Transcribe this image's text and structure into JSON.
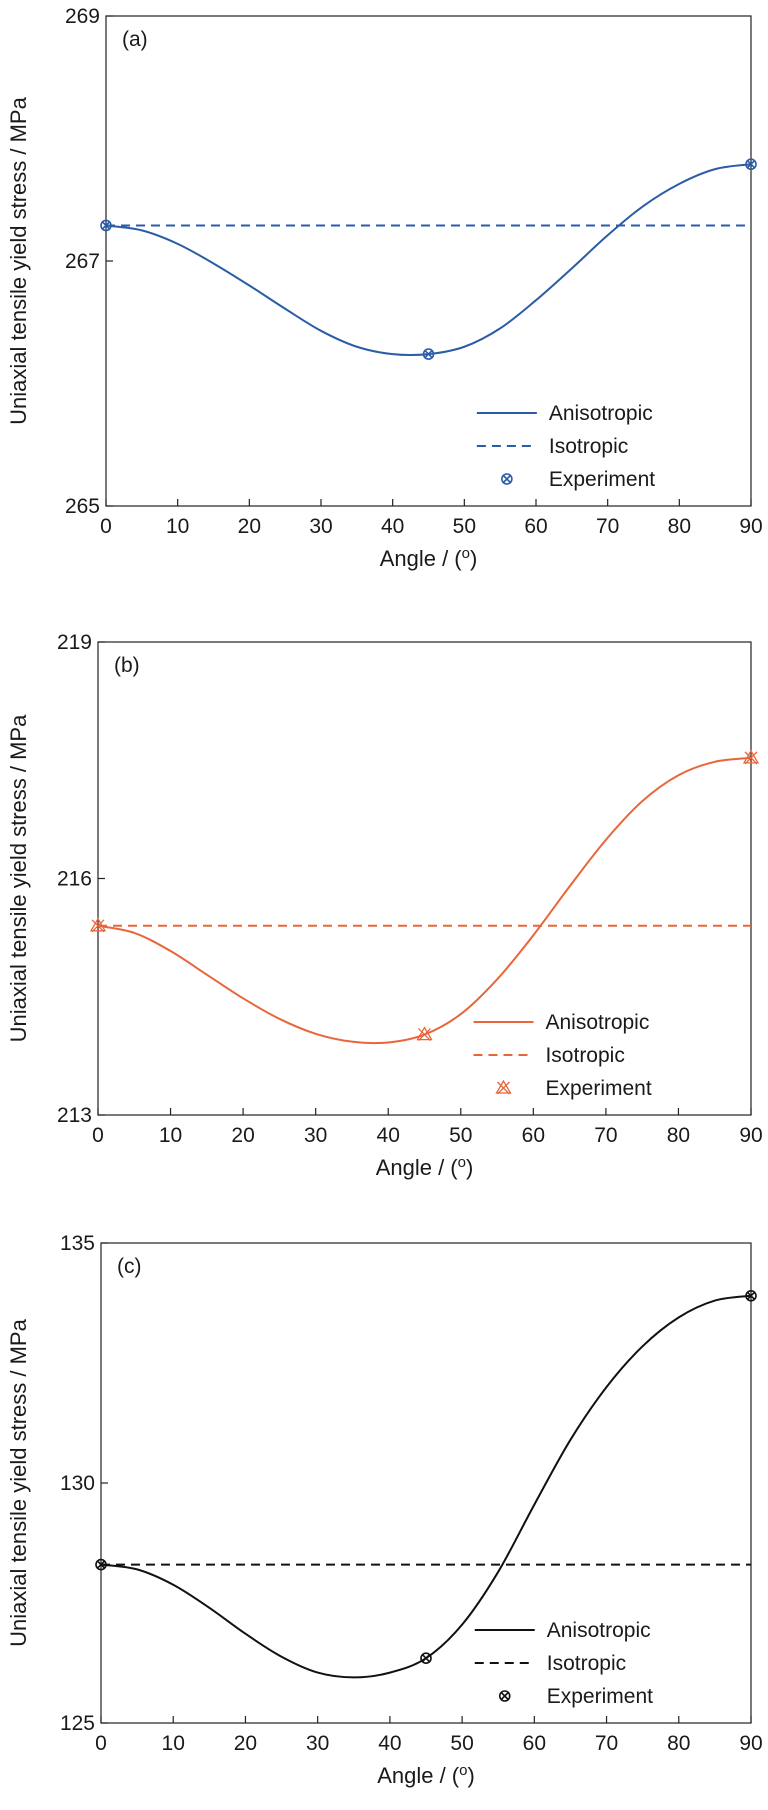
{
  "chart_data": [
    {
      "type": "line",
      "panel_label": "(a)",
      "xlabel": "Angle / (o)",
      "ylabel": "Uniaxial tensile yield stress / MPa",
      "xlim": [
        0,
        90
      ],
      "ylim": [
        265,
        269
      ],
      "xticks": [
        "0",
        "10",
        "20",
        "30",
        "40",
        "50",
        "60",
        "70",
        "80",
        "90"
      ],
      "yticks": [
        "265",
        "267",
        "269"
      ],
      "color": "#2a5ca8",
      "legend_position": "bottom-right",
      "marker": "circle-x",
      "series": [
        {
          "name": "Anisotropic",
          "style": "solid",
          "x": [
            0,
            5,
            10,
            15,
            20,
            25,
            30,
            35,
            40,
            45,
            50,
            55,
            60,
            65,
            70,
            75,
            80,
            85,
            90
          ],
          "y": [
            267.29,
            267.25,
            267.14,
            266.98,
            266.8,
            266.61,
            266.43,
            266.3,
            266.24,
            266.24,
            266.3,
            266.45,
            266.68,
            266.94,
            267.21,
            267.45,
            267.63,
            267.75,
            267.79
          ]
        },
        {
          "name": "Isotropic",
          "style": "dashed",
          "x": [
            0,
            90
          ],
          "y": [
            267.29,
            267.29
          ]
        },
        {
          "name": "Experiment",
          "style": "marker",
          "x": [
            0,
            45,
            90
          ],
          "y": [
            267.29,
            266.24,
            267.79
          ]
        }
      ]
    },
    {
      "type": "line",
      "panel_label": "(b)",
      "xlabel": "Angle / (o)",
      "ylabel": "Uniaxial tensile yield stress / MPa",
      "xlim": [
        0,
        90
      ],
      "ylim": [
        213,
        219
      ],
      "xticks": [
        "0",
        "10",
        "20",
        "30",
        "40",
        "50",
        "60",
        "70",
        "80",
        "90"
      ],
      "yticks": [
        "213",
        "216",
        "219"
      ],
      "color": "#e8663a",
      "legend_position": "bottom-right",
      "marker": "x-triangle",
      "series": [
        {
          "name": "Anisotropic",
          "style": "solid",
          "x": [
            0,
            5,
            10,
            15,
            20,
            25,
            30,
            35,
            40,
            45,
            50,
            55,
            60,
            65,
            70,
            75,
            80,
            85,
            90
          ],
          "y": [
            215.4,
            215.31,
            215.08,
            214.78,
            214.48,
            214.22,
            214.03,
            213.93,
            213.92,
            214.02,
            214.28,
            214.72,
            215.28,
            215.9,
            216.49,
            216.98,
            217.31,
            217.48,
            217.53
          ]
        },
        {
          "name": "Isotropic",
          "style": "dashed",
          "x": [
            0,
            90
          ],
          "y": [
            215.4,
            215.4
          ]
        },
        {
          "name": "Experiment",
          "style": "marker",
          "x": [
            0,
            45,
            90
          ],
          "y": [
            215.4,
            214.02,
            217.53
          ]
        }
      ]
    },
    {
      "type": "line",
      "panel_label": "(c)",
      "xlabel": "Angle / (o)",
      "ylabel": "Uniaxial tensile yield stress / MPa",
      "xlim": [
        0,
        90
      ],
      "ylim": [
        125,
        135
      ],
      "xticks": [
        "0",
        "10",
        "20",
        "30",
        "40",
        "50",
        "60",
        "70",
        "80",
        "90"
      ],
      "yticks": [
        "125",
        "130",
        "135"
      ],
      "color": "#111111",
      "legend_position": "bottom-right",
      "marker": "circle-x",
      "series": [
        {
          "name": "Anisotropic",
          "style": "solid",
          "x": [
            0,
            5,
            10,
            15,
            20,
            25,
            30,
            35,
            40,
            45,
            50,
            55,
            60,
            65,
            70,
            75,
            80,
            85,
            90
          ],
          "y": [
            128.3,
            128.2,
            127.88,
            127.4,
            126.86,
            126.38,
            126.05,
            125.95,
            126.05,
            126.35,
            127.05,
            128.15,
            129.55,
            130.9,
            132.0,
            132.85,
            133.45,
            133.8,
            133.9
          ]
        },
        {
          "name": "Isotropic",
          "style": "dashed",
          "x": [
            0,
            90
          ],
          "y": [
            128.3,
            128.3
          ]
        },
        {
          "name": "Experiment",
          "style": "marker",
          "x": [
            0,
            45,
            90
          ],
          "y": [
            128.3,
            126.35,
            133.9
          ]
        }
      ]
    }
  ]
}
